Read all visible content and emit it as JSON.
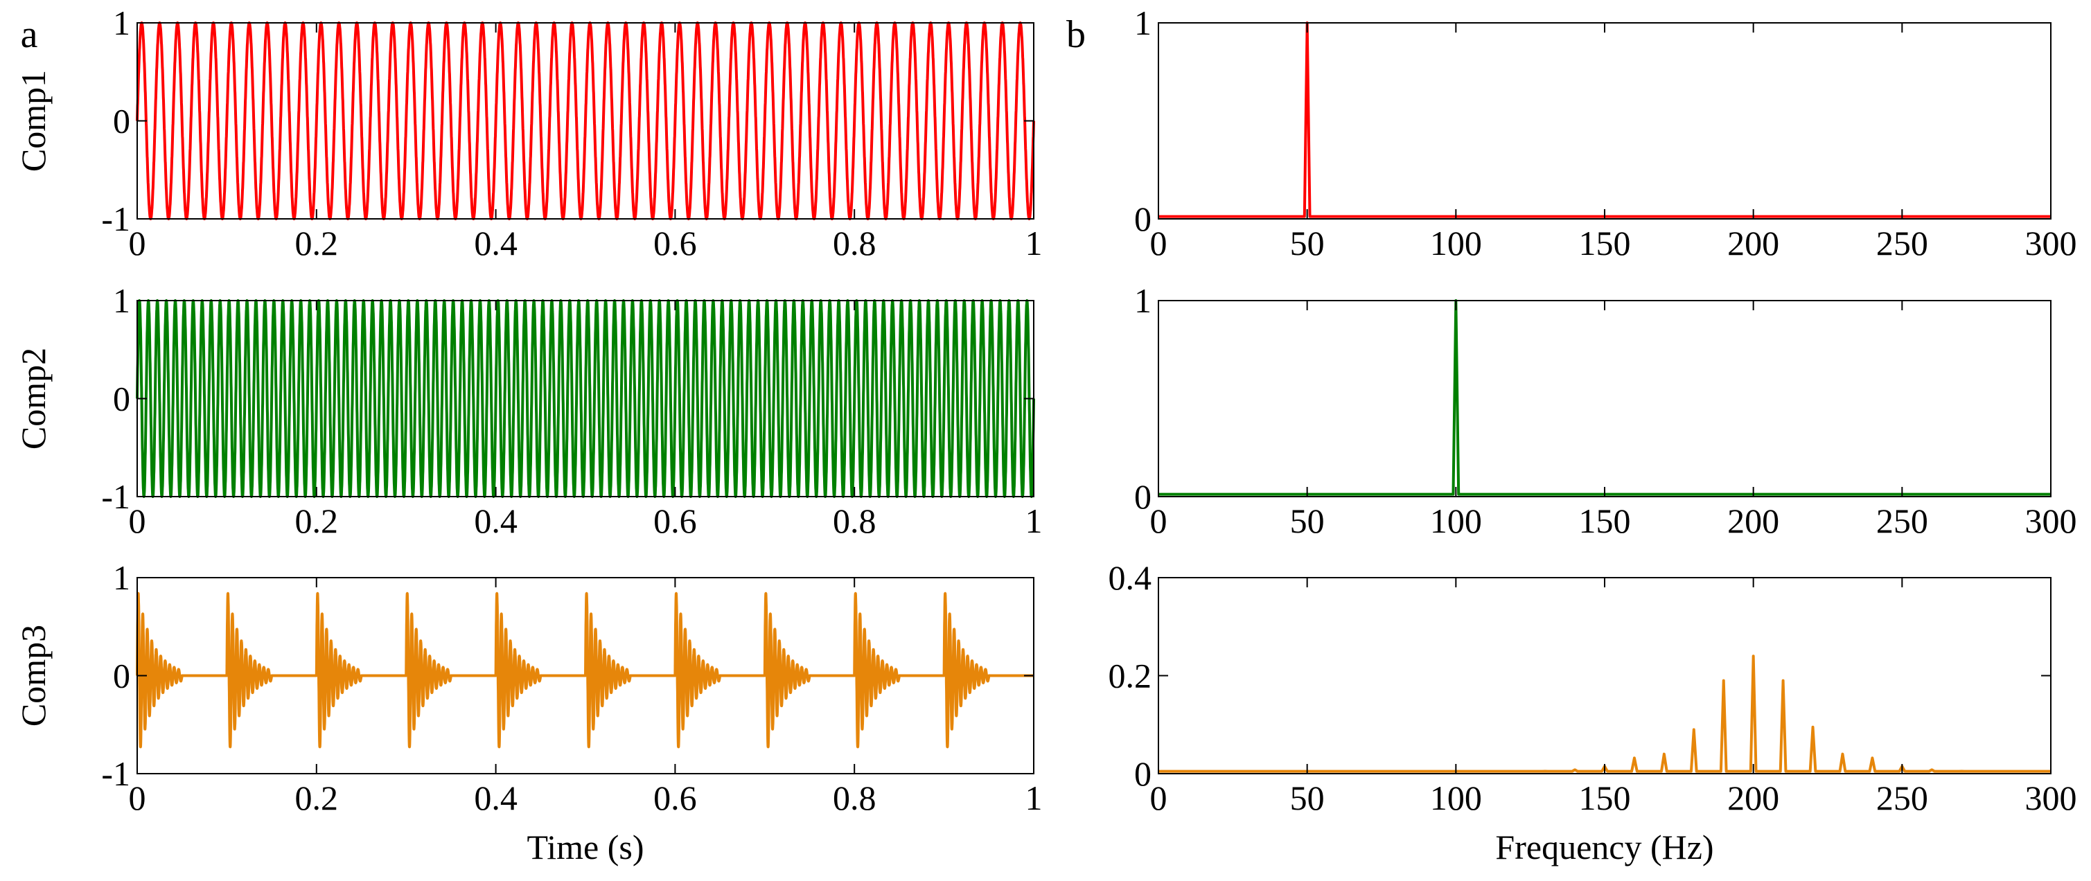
{
  "panel_labels": [
    "a",
    "b"
  ],
  "chart_data": [
    {
      "type": "line",
      "panel": "a",
      "ylabel": "Comp1",
      "xlabel": "",
      "xlim": [
        0,
        1
      ],
      "ylim": [
        -1,
        1
      ],
      "xticks": [
        "0",
        "0.2",
        "0.4",
        "0.6",
        "0.8",
        "1"
      ],
      "yticks": [
        "-1",
        "0",
        "1"
      ],
      "color": "#ff0000",
      "signal": {
        "kind": "sine",
        "frequency_hz": 50,
        "amplitude": 1
      }
    },
    {
      "type": "line",
      "panel": "b",
      "ylabel": "",
      "xlabel": "",
      "xlim": [
        0,
        300
      ],
      "ylim": [
        0,
        1
      ],
      "xticks": [
        "0",
        "50",
        "100",
        "150",
        "200",
        "250",
        "300"
      ],
      "yticks": [
        "0",
        "1"
      ],
      "color": "#ff0000",
      "spectrum_peaks": [
        {
          "x": 50,
          "y": 1
        }
      ]
    },
    {
      "type": "line",
      "panel": "a",
      "ylabel": "Comp2",
      "xlabel": "",
      "xlim": [
        0,
        1
      ],
      "ylim": [
        -1,
        1
      ],
      "xticks": [
        "0",
        "0.2",
        "0.4",
        "0.6",
        "0.8",
        "1"
      ],
      "yticks": [
        "-1",
        "0",
        "1"
      ],
      "color": "#008000",
      "signal": {
        "kind": "sine",
        "frequency_hz": 100,
        "amplitude": 1
      }
    },
    {
      "type": "line",
      "panel": "b",
      "ylabel": "",
      "xlabel": "",
      "xlim": [
        0,
        300
      ],
      "ylim": [
        0,
        1
      ],
      "xticks": [
        "0",
        "50",
        "100",
        "150",
        "200",
        "250",
        "300"
      ],
      "yticks": [
        "0",
        "1"
      ],
      "color": "#008000",
      "spectrum_peaks": [
        {
          "x": 100,
          "y": 1
        }
      ]
    },
    {
      "type": "line",
      "panel": "a",
      "ylabel": "Comp3",
      "xlabel": "Time (s)",
      "xlim": [
        0,
        1
      ],
      "ylim": [
        -1,
        1
      ],
      "xticks": [
        "0",
        "0.2",
        "0.4",
        "0.6",
        "0.8",
        "1"
      ],
      "yticks": [
        "-1",
        "0",
        "1"
      ],
      "color": "#e6860a",
      "signal": {
        "kind": "impulse_train",
        "carrier_hz": 200,
        "amplitude": 0.9,
        "repeat_period_s": 0.1,
        "burst_duration_s": 0.05,
        "burst_starts_s": [
          0,
          0.1,
          0.2,
          0.3,
          0.4,
          0.5,
          0.6,
          0.7,
          0.8,
          0.9
        ]
      }
    },
    {
      "type": "line",
      "panel": "b",
      "ylabel": "",
      "xlabel": "Frequency (Hz)",
      "xlim": [
        0,
        300
      ],
      "ylim": [
        0,
        0.4
      ],
      "xticks": [
        "0",
        "50",
        "100",
        "150",
        "200",
        "250",
        "300"
      ],
      "yticks": [
        "0",
        "0.2",
        "0.4"
      ],
      "color": "#e6860a",
      "spectrum_peaks": [
        {
          "x": 130,
          "y": 0.005
        },
        {
          "x": 140,
          "y": 0.008
        },
        {
          "x": 150,
          "y": 0.015
        },
        {
          "x": 160,
          "y": 0.032
        },
        {
          "x": 170,
          "y": 0.04
        },
        {
          "x": 180,
          "y": 0.09
        },
        {
          "x": 190,
          "y": 0.19
        },
        {
          "x": 200,
          "y": 0.24
        },
        {
          "x": 210,
          "y": 0.19
        },
        {
          "x": 220,
          "y": 0.095
        },
        {
          "x": 230,
          "y": 0.04
        },
        {
          "x": 240,
          "y": 0.032
        },
        {
          "x": 250,
          "y": 0.015
        },
        {
          "x": 260,
          "y": 0.008
        },
        {
          "x": 270,
          "y": 0.005
        }
      ]
    }
  ]
}
